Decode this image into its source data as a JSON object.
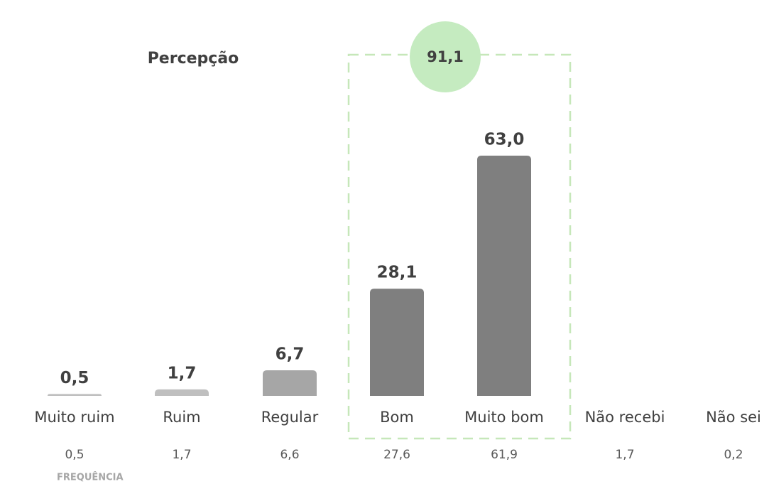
{
  "chart_data": {
    "type": "bar",
    "title": "Percepção",
    "categories": [
      "Muito ruim",
      "Ruim",
      "Regular",
      "Bom",
      "Muito bom",
      "Não recebi",
      "Não sei"
    ],
    "values": [
      0.5,
      1.7,
      6.7,
      28.1,
      63.0,
      null,
      null
    ],
    "value_labels": [
      "0,5",
      "1,7",
      "6,7",
      "28,1",
      "63,0",
      null,
      null
    ],
    "colors": [
      "#bfbfbf",
      "#bfbfbf",
      "#a6a6a6",
      "#7f7f7f",
      "#7f7f7f",
      null,
      null
    ],
    "annotation": {
      "value": 91.1,
      "label": "91,1"
    },
    "frequency": {
      "title": "FREQUÊNCIA",
      "labels": [
        "0,5",
        "1,7",
        "6,6",
        "27,6",
        "61,9",
        "1,7",
        "0,2"
      ]
    }
  }
}
